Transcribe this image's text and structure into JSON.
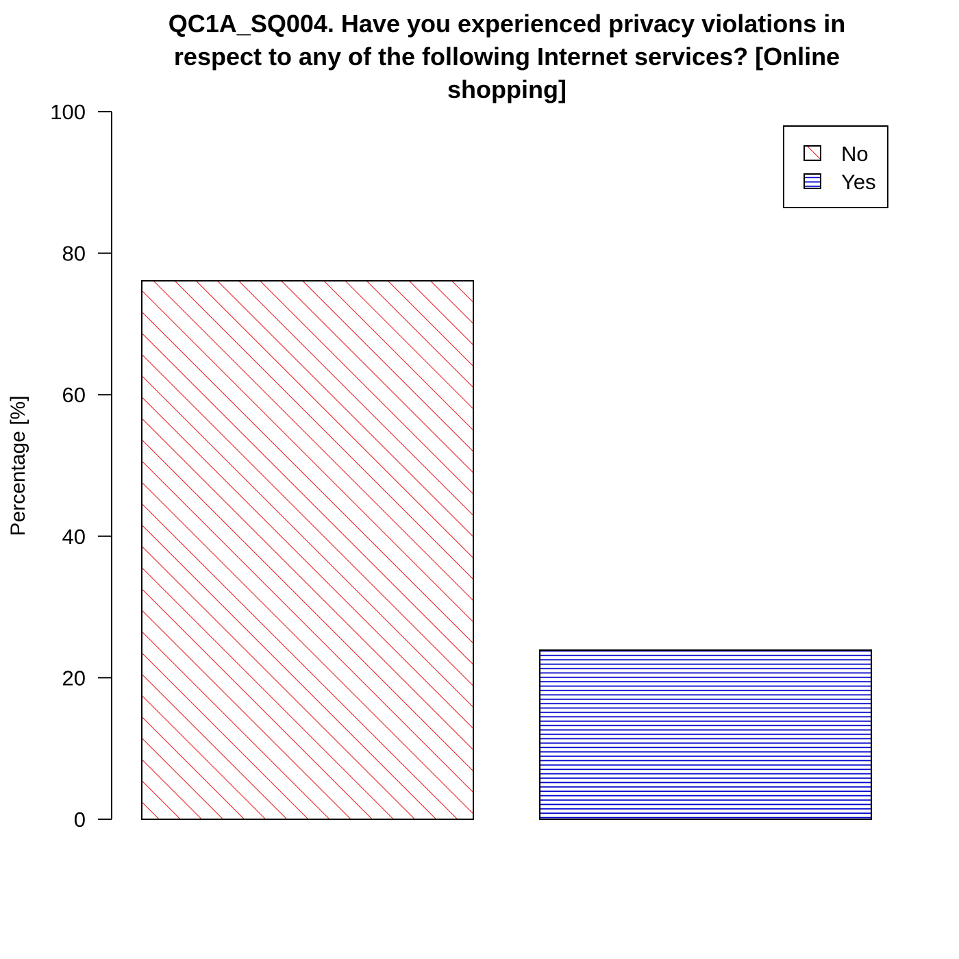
{
  "chart_data": {
    "type": "bar",
    "title_lines": [
      "QC1A_SQ004. Have you experienced privacy violations in",
      "respect to any of the following Internet services? [Online",
      "shopping]"
    ],
    "xlabel": "",
    "ylabel": "Percentage [%]",
    "ylim": [
      0,
      100
    ],
    "yticks": [
      "0",
      "20",
      "40",
      "60",
      "80",
      "100"
    ],
    "grid": false,
    "legend_position": "top-right",
    "series": [
      {
        "name": "No",
        "value": 76.1,
        "color": "#e8141e",
        "pattern": "diagonal-hatch"
      },
      {
        "name": "Yes",
        "value": 23.9,
        "color": "#0000cc",
        "pattern": "horizontal-hatch"
      }
    ]
  }
}
